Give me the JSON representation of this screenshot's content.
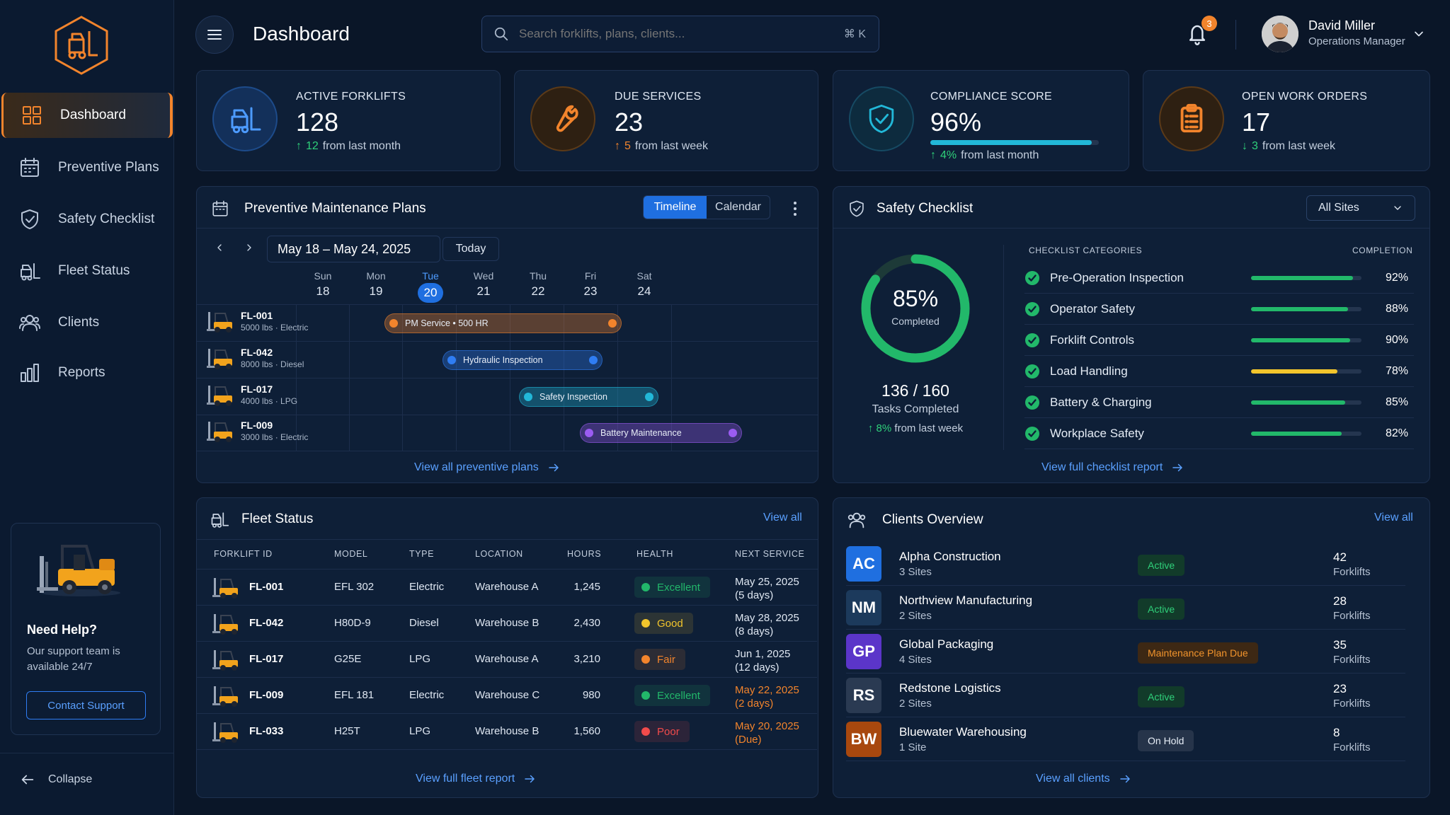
{
  "sidebar": {
    "items": [
      {
        "label": "Dashboard",
        "icon": "grid-icon"
      },
      {
        "label": "Preventive Plans",
        "icon": "calendar-icon"
      },
      {
        "label": "Safety Checklist",
        "icon": "shield-check-icon"
      },
      {
        "label": "Fleet Status",
        "icon": "forklift-icon"
      },
      {
        "label": "Clients",
        "icon": "users-icon"
      },
      {
        "label": "Reports",
        "icon": "bar-chart-icon"
      }
    ],
    "help": {
      "title": "Need Help?",
      "desc": "Our support team is available 24/7",
      "button": "Contact Support"
    },
    "collapse": "Collapse"
  },
  "header": {
    "title": "Dashboard",
    "search_placeholder": "Search forklifts, plans, clients...",
    "search_shortcut": "⌘ K",
    "notifications": "3",
    "user": {
      "name": "David Miller",
      "role": "Operations Manager"
    }
  },
  "kpis": [
    {
      "label": "ACTIVE FORKLIFTS",
      "value": "128",
      "arrow": "↑",
      "delta": "12",
      "suffix": "from last month",
      "color": "#2f7df3"
    },
    {
      "label": "DUE SERVICES",
      "value": "23",
      "arrow": "↑",
      "delta": "5",
      "suffix": "from last week",
      "color": "#f2842c"
    },
    {
      "label": "COMPLIANCE SCORE",
      "value": "96%",
      "arrow": "↑",
      "delta": "4%",
      "suffix": "from last month",
      "progress": 0.96,
      "color": "#22b8d8"
    },
    {
      "label": "OPEN WORK ORDERS",
      "value": "17",
      "arrow": "↓",
      "delta": "3",
      "suffix": "from last week",
      "color": "#f2842c"
    }
  ],
  "pm": {
    "title": "Preventive Maintenance Plans",
    "tabs": [
      "Timeline",
      "Calendar"
    ],
    "range": "May 18 – May 24, 2025",
    "today": "Today",
    "days": [
      {
        "name": "Sun",
        "num": "18"
      },
      {
        "name": "Mon",
        "num": "19"
      },
      {
        "name": "Tue",
        "num": "20"
      },
      {
        "name": "Wed",
        "num": "21"
      },
      {
        "name": "Thu",
        "num": "22"
      },
      {
        "name": "Fri",
        "num": "23"
      },
      {
        "name": "Sat",
        "num": "24"
      }
    ],
    "rows": [
      {
        "id": "FL-001",
        "spec": "5000 lbs · Electric",
        "task": "PM Service  •  500 HR",
        "color": "#f2842c"
      },
      {
        "id": "FL-042",
        "spec": "8000 lbs · Diesel",
        "task": "Hydraulic Inspection",
        "color": "#2f7df3"
      },
      {
        "id": "FL-017",
        "spec": "4000 lbs · LPG",
        "task": "Safety Inspection",
        "color": "#22b8d8"
      },
      {
        "id": "FL-009",
        "spec": "3000 lbs · Electric",
        "task": "Battery Maintenance",
        "color": "#9b5cf2"
      }
    ],
    "link": "View all preventive plans"
  },
  "safety": {
    "title": "Safety Checklist",
    "site": "All Sites",
    "gauge": {
      "pct": "85%",
      "label": "Completed",
      "value": 0.85
    },
    "tasks": "136 / 160",
    "tasks_label": "Tasks Completed",
    "delta_arrow": "↑",
    "delta": "8%",
    "delta_suffix": "from last week",
    "col_cat": "CHECKLIST CATEGORIES",
    "col_comp": "COMPLETION",
    "items": [
      {
        "name": "Pre-Operation Inspection",
        "pct": "92%",
        "value": 0.92,
        "color": "#22b86a"
      },
      {
        "name": "Operator Safety",
        "pct": "88%",
        "value": 0.88,
        "color": "#22b86a"
      },
      {
        "name": "Forklift Controls",
        "pct": "90%",
        "value": 0.9,
        "color": "#22b86a"
      },
      {
        "name": "Load Handling",
        "pct": "78%",
        "value": 0.78,
        "color": "#f2c52c"
      },
      {
        "name": "Battery & Charging",
        "pct": "85%",
        "value": 0.85,
        "color": "#22b86a"
      },
      {
        "name": "Workplace Safety",
        "pct": "82%",
        "value": 0.82,
        "color": "#22b86a"
      }
    ],
    "link": "View full checklist report"
  },
  "fleet": {
    "title": "Fleet Status",
    "view_all": "View all",
    "columns": [
      "FORKLIFT ID",
      "MODEL",
      "TYPE",
      "LOCATION",
      "HOURS",
      "HEALTH",
      "NEXT SERVICE"
    ],
    "rows": [
      {
        "id": "FL-001",
        "model": "EFL 302",
        "type": "Electric",
        "location": "Warehouse A",
        "hours": "1,245",
        "health": "Excellent",
        "hcolor": "#22b86a",
        "next": "May 25, 2025",
        "next_sub": "(5 days)",
        "warn": false
      },
      {
        "id": "FL-042",
        "model": "H80D-9",
        "type": "Diesel",
        "location": "Warehouse B",
        "hours": "2,430",
        "health": "Good",
        "hcolor": "#f2c52c",
        "next": "May 28, 2025",
        "next_sub": "(8 days)",
        "warn": false
      },
      {
        "id": "FL-017",
        "model": "G25E",
        "type": "LPG",
        "location": "Warehouse A",
        "hours": "3,210",
        "health": "Fair",
        "hcolor": "#f2842c",
        "next": "Jun 1, 2025",
        "next_sub": "(12 days)",
        "warn": false
      },
      {
        "id": "FL-009",
        "model": "EFL 181",
        "type": "Electric",
        "location": "Warehouse C",
        "hours": "980",
        "health": "Excellent",
        "hcolor": "#22b86a",
        "next": "May 22, 2025",
        "next_sub": "(2 days)",
        "warn": true
      },
      {
        "id": "FL-033",
        "model": "H25T",
        "type": "LPG",
        "location": "Warehouse B",
        "hours": "1,560",
        "health": "Poor",
        "hcolor": "#f24b4b",
        "next": "May 20, 2025",
        "next_sub": "(Due)",
        "warn": true
      }
    ],
    "link": "View full fleet report"
  },
  "clients": {
    "title": "Clients Overview",
    "view_all": "View all",
    "rows": [
      {
        "initials": "AC",
        "name": "Alpha Construction",
        "sites": "3 Sites",
        "status": "Active",
        "count": "42",
        "unit": "Forklifts",
        "color": "#1f6fe0",
        "sbg": "#123b2a",
        "sfg": "#2fd07a"
      },
      {
        "initials": "NM",
        "name": "Northview Manufacturing",
        "sites": "2 Sites",
        "status": "Active",
        "count": "28",
        "unit": "Forklifts",
        "color": "#1c3a5c",
        "sbg": "#123b2a",
        "sfg": "#2fd07a"
      },
      {
        "initials": "GP",
        "name": "Global Packaging",
        "sites": "4 Sites",
        "status": "Maintenance Plan Due",
        "count": "35",
        "unit": "Forklifts",
        "color": "#5b35c9",
        "sbg": "#3d2814",
        "sfg": "#f2942c"
      },
      {
        "initials": "RS",
        "name": "Redstone Logistics",
        "sites": "2 Sites",
        "status": "Active",
        "count": "23",
        "unit": "Forklifts",
        "color": "#2a3a52",
        "sbg": "#123b2a",
        "sfg": "#2fd07a"
      },
      {
        "initials": "BW",
        "name": "Bluewater Warehousing",
        "sites": "1 Site",
        "status": "On Hold",
        "count": "8",
        "unit": "Forklifts",
        "color": "#a8480e",
        "sbg": "#26344a",
        "sfg": "#e6edf6"
      }
    ],
    "link": "View all clients"
  }
}
